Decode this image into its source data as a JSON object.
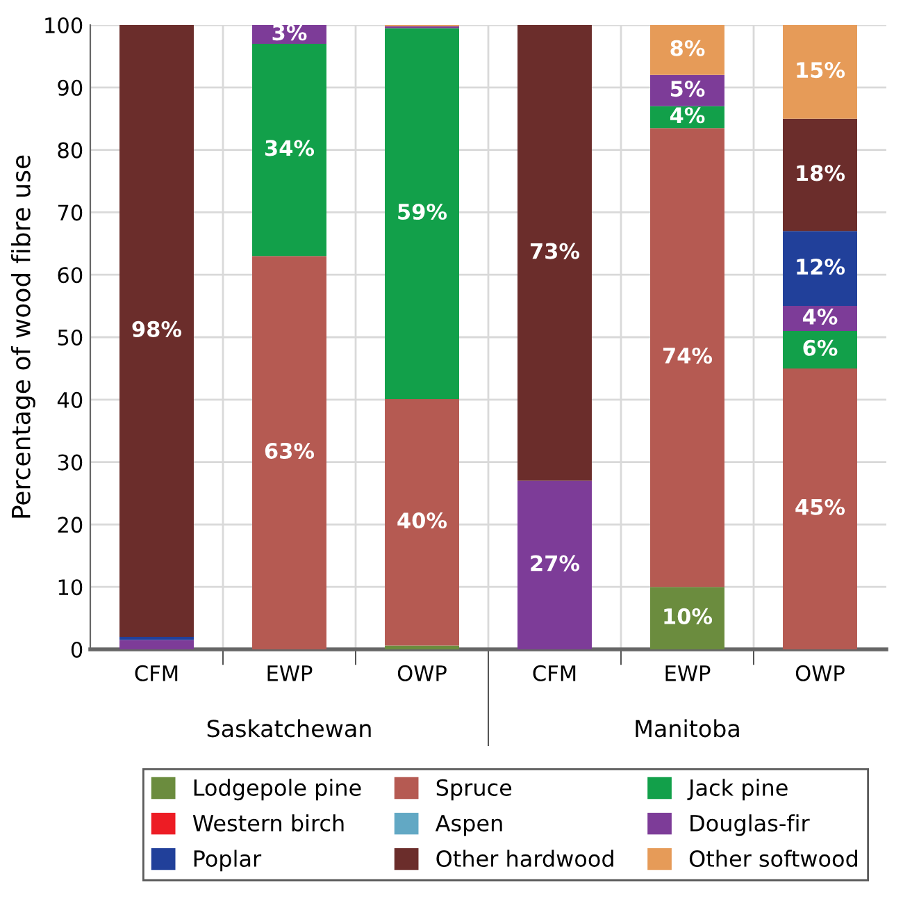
{
  "chart_data": {
    "type": "bar",
    "stacked": true,
    "ylabel": "Percentage of wood fibre use",
    "categories": [
      "CFM",
      "EWP",
      "OWP",
      "CFM",
      "EWP",
      "OWP"
    ],
    "annotations": [
      "Saskatchewan",
      "Manitoba"
    ],
    "ylim": [
      0,
      100
    ],
    "yticks": [
      0,
      10,
      20,
      30,
      40,
      50,
      60,
      70,
      80,
      90,
      100
    ],
    "grid": true,
    "legend": "bottom",
    "series": [
      {
        "name": "Lodgepole pine",
        "color": "#6b8c3e",
        "values": [
          0,
          0,
          0.6,
          0,
          10,
          0
        ],
        "value_labels": [
          null,
          null,
          null,
          null,
          "10%",
          null
        ]
      },
      {
        "name": "Spruce",
        "color": "#b55a52",
        "values": [
          0,
          63,
          39.5,
          0,
          73.5,
          45
        ],
        "value_labels": [
          null,
          "63%",
          "40%",
          null,
          "74%",
          "45%"
        ]
      },
      {
        "name": "Jack pine",
        "color": "#12a04a",
        "values": [
          0,
          34,
          59.4,
          0,
          3.5,
          6
        ],
        "value_labels": [
          null,
          "34%",
          "59%",
          null,
          "4%",
          "6%"
        ]
      },
      {
        "name": "Western birch",
        "color": "#ed1c24",
        "values": [
          0,
          0,
          0,
          0,
          0,
          0
        ]
      },
      {
        "name": "Aspen",
        "color": "#62a8c4",
        "values": [
          0,
          0,
          0,
          0,
          0,
          0
        ]
      },
      {
        "name": "Douglas-fir",
        "color": "#7d3c98",
        "values": [
          1.5,
          3,
          0.3,
          27,
          5,
          4
        ],
        "value_labels": [
          null,
          "3%",
          null,
          "27%",
          "5%",
          "4%"
        ]
      },
      {
        "name": "Poplar",
        "color": "#21409a",
        "values": [
          0.5,
          0,
          0,
          0,
          0,
          12
        ],
        "value_labels": [
          null,
          null,
          null,
          null,
          null,
          "12%"
        ]
      },
      {
        "name": "Other hardwood",
        "color": "#6b2d2b",
        "values": [
          98,
          0,
          0,
          73,
          0,
          18
        ],
        "value_labels": [
          "98%",
          null,
          null,
          "73%",
          null,
          "18%"
        ]
      },
      {
        "name": "Other softwood",
        "color": "#e69b58",
        "values": [
          0,
          0,
          0.2,
          0,
          8,
          15
        ],
        "value_labels": [
          null,
          null,
          null,
          null,
          "8%",
          "15%"
        ]
      }
    ]
  }
}
